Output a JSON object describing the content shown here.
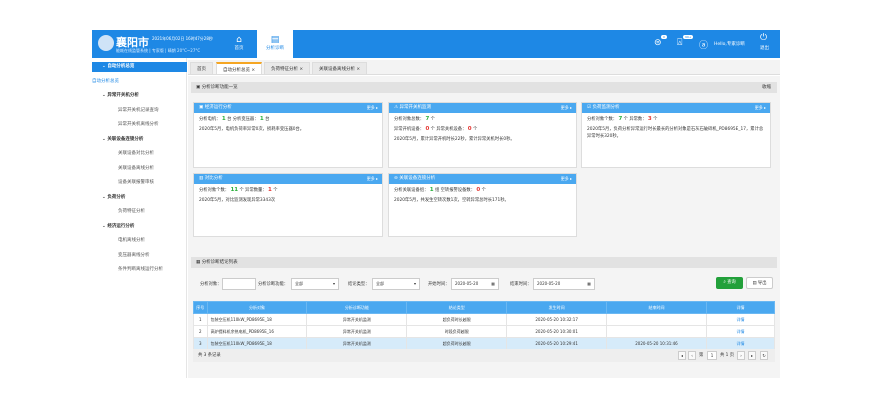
{
  "header": {
    "city": "襄阳市",
    "datetime": "2021年06月02日 16时47分28秒",
    "subtitle": "能耗在线监管系统 | 专家版 | 晴朗 20°C~27°C",
    "nav": [
      {
        "label": "首页",
        "icon": "home-icon"
      },
      {
        "label": "分析诊断",
        "icon": "analysis-icon"
      }
    ],
    "badges": [
      "0",
      "99+"
    ],
    "user": "Hello,专家诊断",
    "logout": "退出",
    "accent": "#1e88e5"
  },
  "sidebar": [
    {
      "label": "自动分析总览",
      "type": "active"
    },
    {
      "label": "自动分析总览",
      "type": "sel"
    },
    {
      "label": "异常开关机分析",
      "type": "group"
    },
    {
      "label": "异常开关机记录查询",
      "type": "item"
    },
    {
      "label": "异常开关机离线分析",
      "type": "item"
    },
    {
      "label": "关联设备连锁分析",
      "type": "group"
    },
    {
      "label": "关联设备对比分析",
      "type": "item"
    },
    {
      "label": "关联设备离线分析",
      "type": "item"
    },
    {
      "label": "设备关联报警审核",
      "type": "item"
    },
    {
      "label": "负荷分析",
      "type": "group"
    },
    {
      "label": "负荷特征分析",
      "type": "item"
    },
    {
      "label": "经济运行分析",
      "type": "group"
    },
    {
      "label": "电机离线分析",
      "type": "item"
    },
    {
      "label": "变压器离线分析",
      "type": "item"
    },
    {
      "label": "条件判断离线运行分析",
      "type": "item"
    }
  ],
  "tabs": [
    "首页",
    "自动分析总览 ×",
    "负荷特征分析 ×",
    "关联设备离线分析 ×"
  ],
  "overview": {
    "title": "分析诊断功能一览",
    "collapse": "收缩",
    "more": "更多 ▸",
    "cards": [
      {
        "title": "经济运行分析",
        "l1": [
          "分析电机：",
          "1",
          "台",
          "分析变压器：",
          "1",
          "台"
        ],
        "text": "2020年5月，电机负荷率异常0次，损耗率变压器0台。"
      },
      {
        "title": "异常开关机监测",
        "l1": [
          "分析对象总数：",
          "7",
          "个"
        ],
        "l2": [
          "异常开机设备：",
          "0",
          "个",
          "异常关机设备：",
          "0",
          "个"
        ],
        "text": "2020年5月，累计异常开机时长22秒，累计异常关机时长0秒。"
      },
      {
        "title": "负荷监测分析",
        "l1": [
          "分析对象个数：",
          "7",
          "个",
          "异常数：",
          "3",
          "个"
        ],
        "text": "2020年5月，负荷分析异常运行时长最长的分析对象是石灰石破碎机_PD8695E_17，累计总异常时长320秒。"
      },
      {
        "title": "对比分析",
        "l1": [
          "分析对象个数：",
          "11",
          "个",
          "异常数量：",
          "1",
          "个"
        ],
        "text": "2020年5月，对比监测发现异常3343次"
      },
      {
        "title": "关联设备连锁分析",
        "l1": [
          "分析关联设备组：",
          "1",
          "组",
          "空转报警设备数：",
          "0",
          "个"
        ],
        "text": "2020年5月，共发生空转次数1次，空转异常总时长171秒。"
      }
    ]
  },
  "list": {
    "title": "分析诊断结论列表",
    "filters": {
      "object_label": "分析对象：",
      "object_value": "",
      "func_label": "分析诊断功能：",
      "func_value": "全部",
      "type_label": "结论类型：",
      "type_value": "全部",
      "start_label": "开始时间：",
      "start_value": "2020-05-20",
      "end_label": "结束时间：",
      "end_value": "2020-05-20"
    },
    "search": "查询",
    "export": "导出",
    "search_color": "#22a03a",
    "columns": [
      "序号",
      "分析对象",
      "分析诊断功能",
      "结论类型",
      "发生时间",
      "结束时间",
      "详情"
    ],
    "rows": [
      [
        "1",
        "包装空压机110kW_PD8695E_18",
        "异常开关机监测",
        "超负荷时长越限",
        "2020-05-20 10:32:17",
        "",
        "详情"
      ],
      [
        "2",
        "高炉提料机余热电机_PD8695E_16",
        "异常开关机监测",
        "时段负荷越限",
        "2020-05-20 10:30:01",
        "",
        "详情"
      ],
      [
        "3",
        "包装空压机110kW_PD8695E_18",
        "异常开关机监测",
        "超负荷时长越限",
        "2020-05-20 10:29:41",
        "2020-05-20 10:31:46",
        "详情"
      ]
    ],
    "total": "共 3 条记录",
    "page_prefix": "第",
    "page": "1",
    "page_suffix": "共 1 页"
  }
}
